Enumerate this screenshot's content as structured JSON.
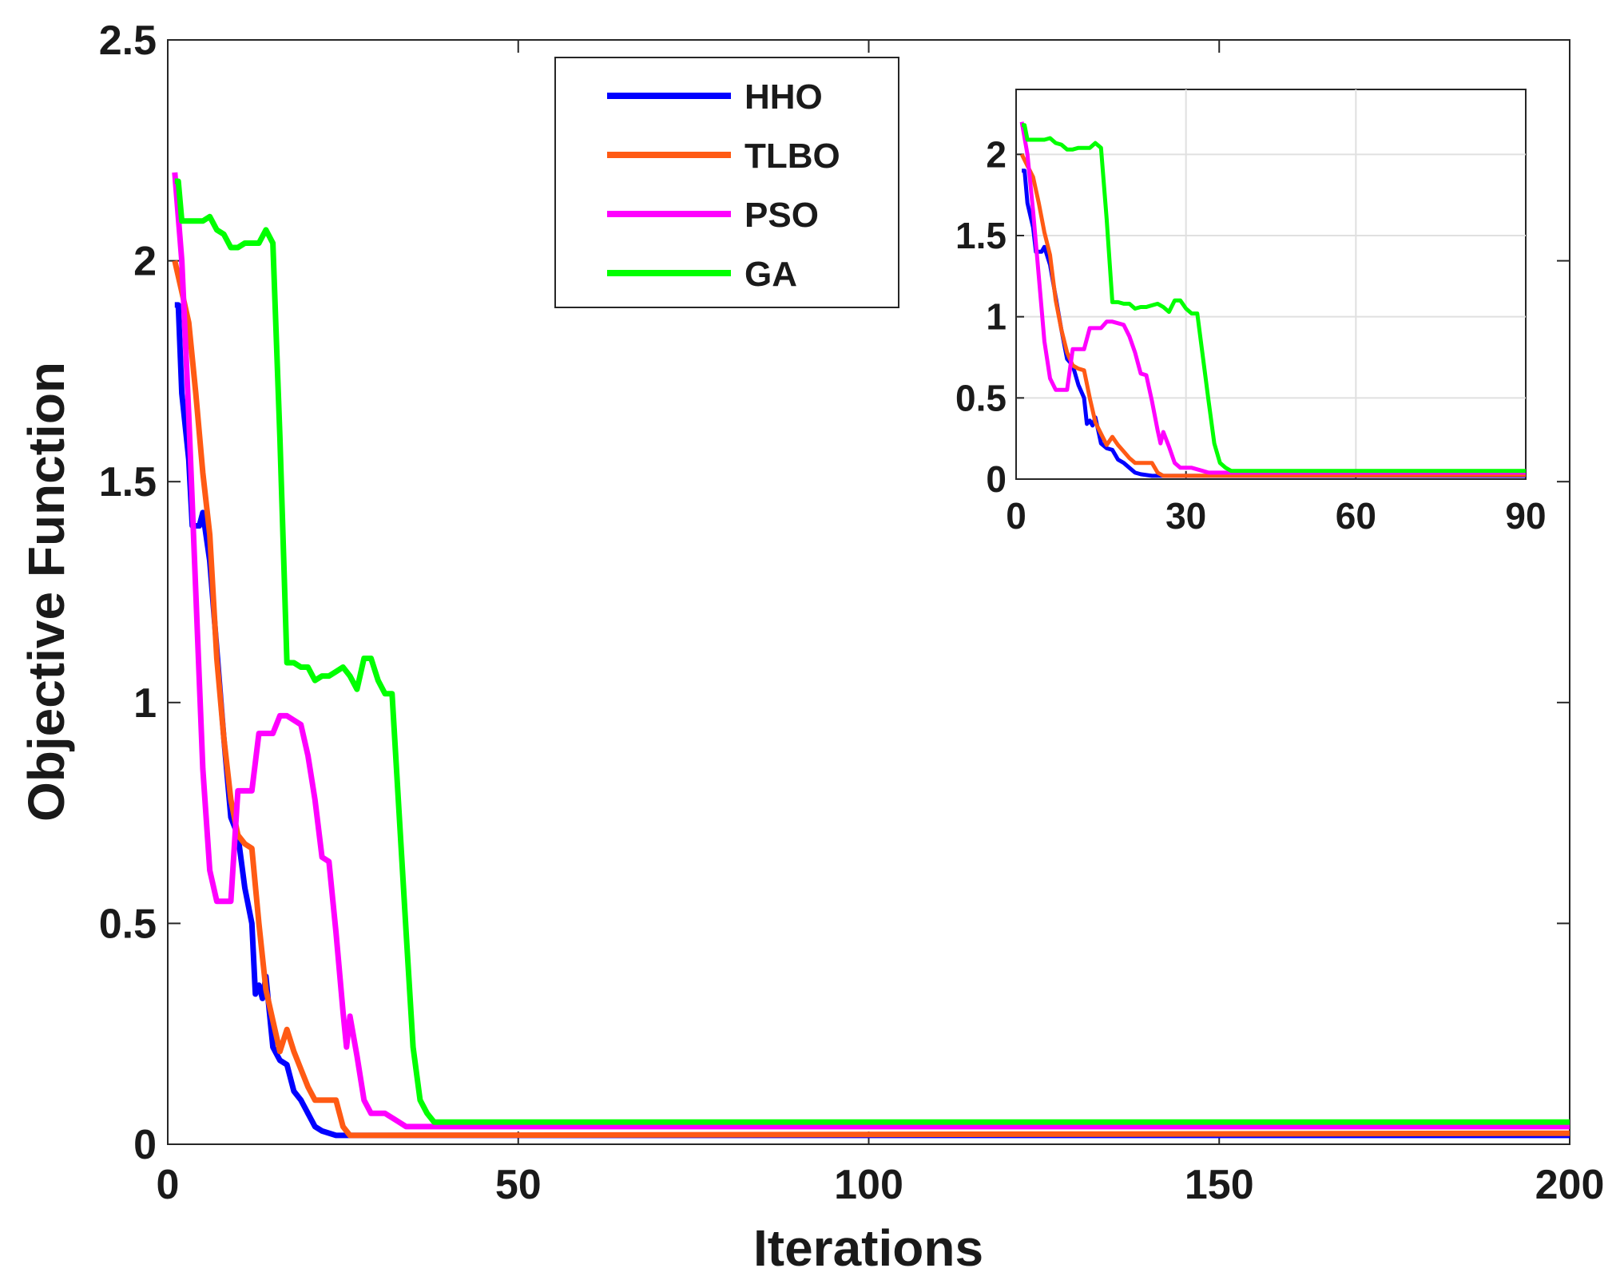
{
  "chart_data": [
    {
      "type": "line",
      "title": "",
      "xlabel": "Iterations",
      "ylabel": "Objective Function",
      "xlim": [
        0,
        200
      ],
      "ylim": [
        0,
        2.5
      ],
      "grid": false,
      "legend_position": "top-center",
      "xticks": [
        "0",
        "50",
        "100",
        "150",
        "200"
      ],
      "yticks": [
        "0",
        "0.5",
        "1",
        "1.5",
        "2",
        "2.5"
      ],
      "series": [
        {
          "name": "HHO",
          "color": "#0000ff",
          "points": [
            [
              1,
              1.9
            ],
            [
              1.5,
              1.9
            ],
            [
              2,
              1.7
            ],
            [
              3,
              1.55
            ],
            [
              3.5,
              1.4
            ],
            [
              4.5,
              1.4
            ],
            [
              5,
              1.43
            ],
            [
              6,
              1.32
            ],
            [
              7,
              1.12
            ],
            [
              8,
              0.92
            ],
            [
              9,
              0.74
            ],
            [
              10,
              0.7
            ],
            [
              11,
              0.58
            ],
            [
              12,
              0.5
            ],
            [
              12.5,
              0.34
            ],
            [
              13,
              0.36
            ],
            [
              13.5,
              0.33
            ],
            [
              14,
              0.38
            ],
            [
              14.5,
              0.3
            ],
            [
              15,
              0.22
            ],
            [
              16,
              0.19
            ],
            [
              17,
              0.18
            ],
            [
              18,
              0.12
            ],
            [
              19,
              0.1
            ],
            [
              20,
              0.07
            ],
            [
              21,
              0.04
            ],
            [
              22,
              0.03
            ],
            [
              24,
              0.02
            ],
            [
              200,
              0.02
            ]
          ]
        },
        {
          "name": "TLBO",
          "color": "#ff5a14",
          "points": [
            [
              1,
              2.0
            ],
            [
              2,
              1.93
            ],
            [
              3,
              1.86
            ],
            [
              4,
              1.7
            ],
            [
              5,
              1.52
            ],
            [
              6,
              1.38
            ],
            [
              7,
              1.1
            ],
            [
              8,
              0.92
            ],
            [
              9,
              0.78
            ],
            [
              10,
              0.7
            ],
            [
              11,
              0.68
            ],
            [
              12,
              0.67
            ],
            [
              13,
              0.5
            ],
            [
              14,
              0.35
            ],
            [
              15,
              0.28
            ],
            [
              16,
              0.21
            ],
            [
              17,
              0.26
            ],
            [
              18,
              0.21
            ],
            [
              19,
              0.17
            ],
            [
              20,
              0.13
            ],
            [
              21,
              0.1
            ],
            [
              22,
              0.1
            ],
            [
              24,
              0.1
            ],
            [
              25,
              0.04
            ],
            [
              26,
              0.02
            ],
            [
              27,
              0.02
            ],
            [
              200,
              0.025
            ]
          ]
        },
        {
          "name": "PSO",
          "color": "#ff00ff",
          "points": [
            [
              1,
              2.2
            ],
            [
              2,
              2.0
            ],
            [
              3,
              1.65
            ],
            [
              4,
              1.25
            ],
            [
              5,
              0.85
            ],
            [
              6,
              0.62
            ],
            [
              7,
              0.55
            ],
            [
              8,
              0.55
            ],
            [
              9,
              0.55
            ],
            [
              10,
              0.8
            ],
            [
              11,
              0.8
            ],
            [
              12,
              0.8
            ],
            [
              13,
              0.93
            ],
            [
              14,
              0.93
            ],
            [
              15,
              0.93
            ],
            [
              16,
              0.97
            ],
            [
              17,
              0.97
            ],
            [
              18,
              0.96
            ],
            [
              19,
              0.95
            ],
            [
              20,
              0.88
            ],
            [
              21,
              0.78
            ],
            [
              22,
              0.65
            ],
            [
              23,
              0.64
            ],
            [
              24,
              0.48
            ],
            [
              25,
              0.3
            ],
            [
              25.5,
              0.22
            ],
            [
              26,
              0.29
            ],
            [
              27,
              0.2
            ],
            [
              28,
              0.1
            ],
            [
              29,
              0.07
            ],
            [
              30,
              0.07
            ],
            [
              31,
              0.07
            ],
            [
              32,
              0.06
            ],
            [
              33,
              0.05
            ],
            [
              34,
              0.04
            ],
            [
              200,
              0.04
            ]
          ]
        },
        {
          "name": "GA",
          "color": "#00ff00",
          "points": [
            [
              1,
              2.18
            ],
            [
              1.5,
              2.18
            ],
            [
              2,
              2.09
            ],
            [
              3,
              2.09
            ],
            [
              4,
              2.09
            ],
            [
              5,
              2.09
            ],
            [
              6,
              2.1
            ],
            [
              7,
              2.07
            ],
            [
              8,
              2.06
            ],
            [
              9,
              2.03
            ],
            [
              10,
              2.03
            ],
            [
              11,
              2.04
            ],
            [
              12,
              2.04
            ],
            [
              13,
              2.04
            ],
            [
              14,
              2.07
            ],
            [
              15,
              2.04
            ],
            [
              16,
              1.6
            ],
            [
              17,
              1.09
            ],
            [
              18,
              1.09
            ],
            [
              19,
              1.08
            ],
            [
              20,
              1.08
            ],
            [
              21,
              1.05
            ],
            [
              22,
              1.06
            ],
            [
              23,
              1.06
            ],
            [
              24,
              1.07
            ],
            [
              25,
              1.08
            ],
            [
              26,
              1.06
            ],
            [
              27,
              1.03
            ],
            [
              28,
              1.1
            ],
            [
              29,
              1.1
            ],
            [
              30,
              1.05
            ],
            [
              31,
              1.02
            ],
            [
              32,
              1.02
            ],
            [
              33,
              0.75
            ],
            [
              34,
              0.48
            ],
            [
              35,
              0.22
            ],
            [
              36,
              0.1
            ],
            [
              37,
              0.07
            ],
            [
              38,
              0.05
            ],
            [
              39,
              0.05
            ],
            [
              200,
              0.05
            ]
          ]
        }
      ]
    },
    {
      "type": "line",
      "title": "",
      "xlabel": "",
      "ylabel": "",
      "xlim": [
        0,
        90
      ],
      "ylim": [
        0,
        2.4
      ],
      "grid": true,
      "xticks": [
        "0",
        "30",
        "60",
        "90"
      ],
      "yticks": [
        "0",
        "0.5",
        "1",
        "1.5",
        "2"
      ],
      "series_ref": "same series as main chart, zoomed to iterations 0-90"
    }
  ],
  "legend": {
    "items": [
      {
        "label": "HHO",
        "color": "#0000ff"
      },
      {
        "label": "TLBO",
        "color": "#ff5a14"
      },
      {
        "label": "PSO",
        "color": "#ff00ff"
      },
      {
        "label": "GA",
        "color": "#00ff00"
      }
    ]
  }
}
